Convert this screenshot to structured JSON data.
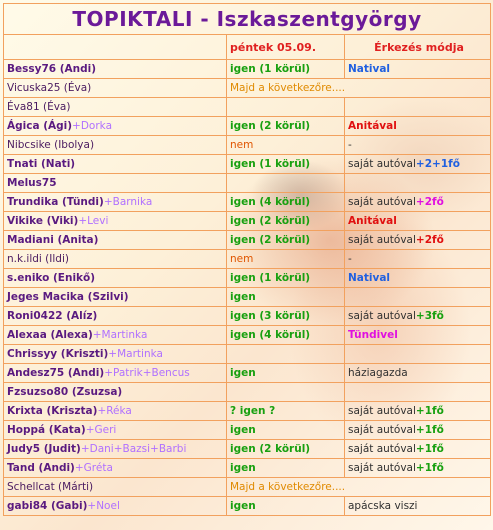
{
  "title": "TOPIKTALI - Iszkaszentgyörgy",
  "headers": {
    "col1": "",
    "col2": "péntek 05.09.",
    "col3": "Érkezés módja"
  },
  "rows": [
    {
      "name": "Bessy76 (Andi)",
      "extra": "",
      "att": "igen (1 körül)",
      "arr": "Natival",
      "arr_extra": ""
    },
    {
      "name": "Vicuska25 (Éva)",
      "extra": "",
      "att": "Majd a következőre....",
      "arr": "",
      "arr_extra": ""
    },
    {
      "name": "Éva81 (Éva)",
      "extra": "",
      "att": "",
      "arr": "",
      "arr_extra": ""
    },
    {
      "name": "Ágica (Ági)",
      "extra": "+Dorka",
      "att": "igen (2 körül)",
      "arr": "Anitával",
      "arr_extra": ""
    },
    {
      "name": "Nibcsike (Ibolya)",
      "extra": "",
      "att": "nem",
      "arr": "-",
      "arr_extra": ""
    },
    {
      "name": "Tnati (Nati)",
      "extra": "",
      "att": "igen (1 körül)",
      "arr": "saját autóval",
      "arr_extra": "+2+1fő"
    },
    {
      "name": "Melus75",
      "extra": "",
      "att": "",
      "arr": "",
      "arr_extra": ""
    },
    {
      "name": "Trundika (Tündi)",
      "extra": "+Barnika",
      "att": "igen (4 körül)",
      "arr": "saját autóval",
      "arr_extra": "+2fő"
    },
    {
      "name": "Vikike (Viki)",
      "extra": "+Levi",
      "att": "igen (2 körül)",
      "arr": "Anitával",
      "arr_extra": ""
    },
    {
      "name": "Madiani (Anita)",
      "extra": "",
      "att": "igen (2 körül)",
      "arr": "saját autóval",
      "arr_extra": "+2fő"
    },
    {
      "name": "n.k.ildi (Ildi)",
      "extra": "",
      "att": "nem",
      "arr": "-",
      "arr_extra": ""
    },
    {
      "name": "s.eniko (Enikő)",
      "extra": "",
      "att": "igen (1 körül)",
      "arr": "Natival",
      "arr_extra": ""
    },
    {
      "name": "Jeges Macika (Szilvi)",
      "extra": "",
      "att": "igen",
      "arr": "",
      "arr_extra": ""
    },
    {
      "name": "Roni0422 (Alíz)",
      "extra": "",
      "att": "igen (3 körül)",
      "arr": "saját autóval",
      "arr_extra": "+3fő"
    },
    {
      "name": "Alexaa (Alexa)",
      "extra": "+Martinka",
      "att": "igen (4 körül)",
      "arr": "Tündivel",
      "arr_extra": ""
    },
    {
      "name": "Chrissyy (Kriszti)",
      "extra": "+Martinka",
      "att": "",
      "arr": "",
      "arr_extra": ""
    },
    {
      "name": "Andesz75 (Andi)",
      "extra": "+Patrik+Bencus",
      "att": "igen",
      "arr": "háziagazda",
      "arr_extra": ""
    },
    {
      "name": "Fzsuzso80 (Zsuzsa)",
      "extra": "",
      "att": "",
      "arr": "",
      "arr_extra": ""
    },
    {
      "name": "Krixta (Kriszta)",
      "extra": "+Réka",
      "att": "? igen ?",
      "arr": "saját autóval",
      "arr_extra": "+1fő"
    },
    {
      "name": "Hoppá (Kata)",
      "extra": "+Geri",
      "att": "igen",
      "arr": "saját autóval",
      "arr_extra": "+1fő"
    },
    {
      "name": "Judy5 (Judit)",
      "extra": "+Dani+Bazsi+Barbi",
      "att": "igen (2 körül)",
      "arr": "saját autóval",
      "arr_extra": "+1fő"
    },
    {
      "name": "Tand (Andi)",
      "extra": "+Gréta",
      "att": "igen",
      "arr": "saját autóval",
      "arr_extra": "+1fő"
    },
    {
      "name": "Schellcat (Márti)",
      "extra": "",
      "att": "Majd a következőre....",
      "arr": "",
      "arr_extra": ""
    },
    {
      "name": "gabi84 (Gabi)",
      "extra": "+Noel",
      "att": "igen",
      "arr": "apácska viszi",
      "arr_extra": ""
    }
  ]
}
